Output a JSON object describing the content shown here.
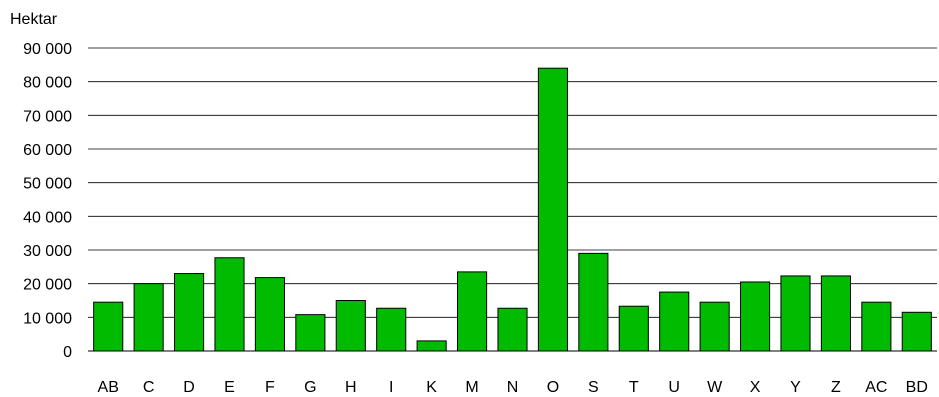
{
  "chart_data": {
    "type": "bar",
    "title": "",
    "xlabel": "",
    "ylabel": "Hektar",
    "categories": [
      "AB",
      "C",
      "D",
      "E",
      "F",
      "G",
      "H",
      "I",
      "K",
      "M",
      "N",
      "O",
      "S",
      "T",
      "U",
      "W",
      "X",
      "Y",
      "Z",
      "AC",
      "BD"
    ],
    "values": [
      14500,
      20000,
      23000,
      27700,
      21800,
      10800,
      15000,
      12700,
      3000,
      23500,
      12700,
      84000,
      29000,
      13300,
      17500,
      14500,
      20500,
      22300,
      22300,
      14500,
      11500
    ],
    "ylim": [
      0,
      90000
    ],
    "yticks": [
      0,
      10000,
      20000,
      30000,
      40000,
      50000,
      60000,
      70000,
      80000,
      90000
    ],
    "ytick_labels": [
      "0",
      "10 000",
      "20 000",
      "30 000",
      "40 000",
      "50 000",
      "60 000",
      "70 000",
      "80 000",
      "90 000"
    ],
    "grid": true,
    "legend": "none",
    "bar_color": "#00bb00",
    "bar_edge_color": "#000000",
    "grid_color": "#000000"
  }
}
